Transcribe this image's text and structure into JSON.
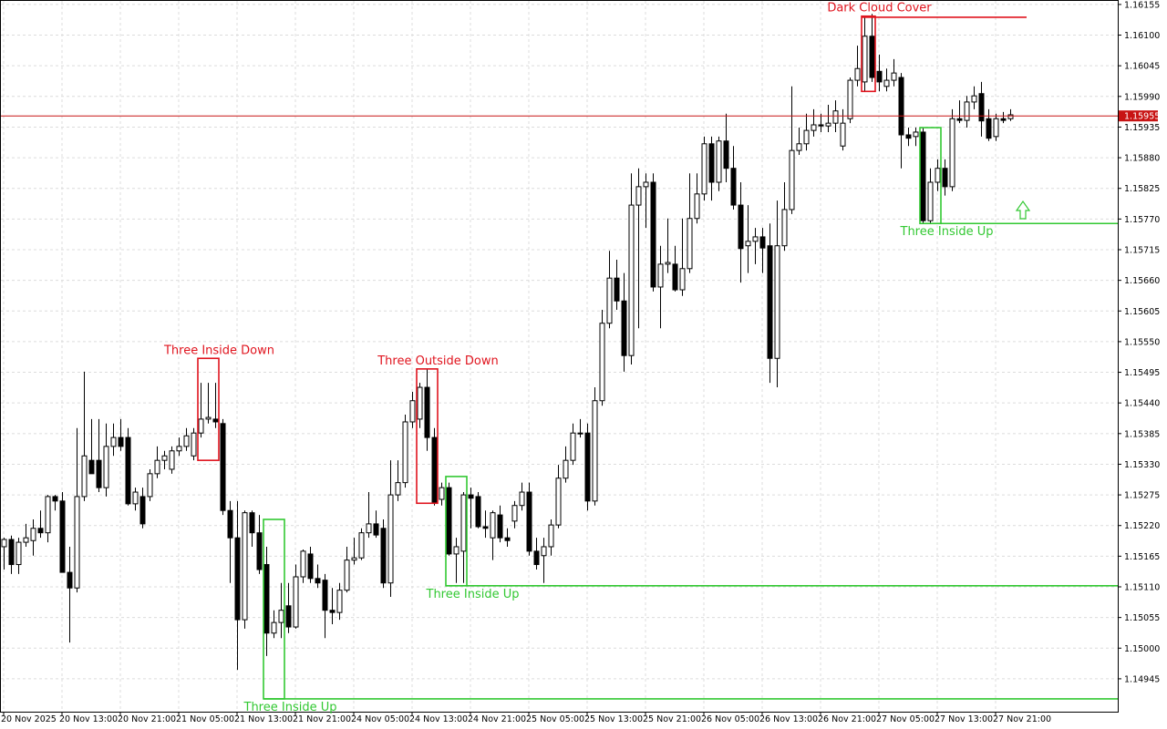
{
  "chart_data": {
    "type": "candlestick",
    "up_color": "#ffffff",
    "down_color": "#000000",
    "edge_color": "#000000",
    "grid": true,
    "xlim": [
      -0.5,
      152.75
    ],
    "ylim": [
      1.14886,
      1.16163
    ],
    "yticks": [
      1.16155,
      {
        "value": 1.161,
        "label": "1.16100"
      },
      1.16045,
      {
        "value": 1.1599,
        "label": "1.15990"
      },
      1.15935,
      {
        "value": 1.1588,
        "label": "1.15880"
      },
      1.15825,
      {
        "value": 1.1577,
        "label": "1.15770"
      },
      1.15715,
      {
        "value": 1.1566,
        "label": "1.15660"
      },
      1.15605,
      {
        "value": 1.1555,
        "label": "1.15550"
      },
      1.15495,
      {
        "value": 1.1544,
        "label": "1.15440"
      },
      1.15385,
      {
        "value": 1.1533,
        "label": "1.15330"
      },
      1.15275,
      {
        "value": 1.1522,
        "label": "1.15220"
      },
      1.15165,
      {
        "value": 1.1511,
        "label": "1.15110"
      },
      1.15055,
      {
        "value": 1.15,
        "label": "1.15000"
      },
      1.14945
    ],
    "xticks": [
      {
        "value": 0,
        "label": "20 Nov 2025"
      },
      {
        "value": 8,
        "label": "20 Nov 13:00"
      },
      {
        "value": 16,
        "label": "20 Nov 21:00"
      },
      {
        "value": 24,
        "label": "21 Nov 05:00"
      },
      {
        "value": 32,
        "label": "21 Nov 13:00"
      },
      {
        "value": 40,
        "label": "21 Nov 21:00"
      },
      {
        "value": 48,
        "label": "24 Nov 05:00"
      },
      {
        "value": 56,
        "label": "24 Nov 13:00"
      },
      {
        "value": 64,
        "label": "24 Nov 21:00"
      },
      {
        "value": 72,
        "label": "25 Nov 05:00"
      },
      {
        "value": 80,
        "label": "25 Nov 13:00"
      },
      {
        "value": 88,
        "label": "25 Nov 21:00"
      },
      {
        "value": 96,
        "label": "26 Nov 05:00"
      },
      {
        "value": 104,
        "label": "26 Nov 13:00"
      },
      {
        "value": 112,
        "label": "26 Nov 21:00"
      },
      {
        "value": 120,
        "label": "27 Nov 05:00"
      },
      {
        "value": 128,
        "label": "27 Nov 13:00"
      },
      {
        "value": 136,
        "label": "27 Nov 21:00"
      }
    ],
    "current_price": {
      "value": 1.15955,
      "color": "#c81414"
    },
    "open": [
      1.15182,
      1.15195,
      1.1515,
      1.1519,
      1.15193,
      1.15215,
      1.15207,
      1.15272,
      1.15264,
      1.15136,
      1.15108,
      1.15272,
      1.15337,
      1.15337,
      1.15288,
      1.15362,
      1.15378,
      1.15378,
      1.15259,
      1.15272,
      1.15272,
      1.15313,
      1.15337,
      1.15321,
      1.15354,
      1.15362,
      1.15345,
      1.15386,
      1.15411,
      1.15411,
      1.15403,
      1.15247,
      1.15198,
      1.15051,
      1.15243,
      1.15207,
      1.1515,
      1.15027,
      1.15046,
      1.15076,
      1.15038,
      1.15128,
      1.15169,
      1.15125,
      1.15122,
      1.15068,
      1.15064,
      1.15104,
      1.15158,
      1.15162,
      1.15207,
      1.15223,
      1.15215,
      1.15117,
      1.15275,
      1.15297,
      1.15406,
      1.15411,
      1.15468,
      1.15378,
      1.15267,
      1.15288,
      1.15169,
      1.15174,
      1.15275,
      1.15272,
      1.15218,
      1.15198,
      1.15239,
      1.15198,
      1.15228,
      1.15256,
      1.1528,
      1.15174,
      1.15166,
      1.15182,
      1.15221,
      1.15305,
      1.15337,
      1.15386,
      1.15386,
      1.15264,
      1.15444,
      1.15583,
      1.15664,
      1.15623,
      1.15525,
      1.15795,
      1.15828,
      1.15836,
      1.15648,
      1.15689,
      1.15689,
      1.15643,
      1.15681,
      1.15771,
      1.15815,
      1.15905,
      1.15836,
      1.1591,
      1.15861,
      1.15795,
      1.15722,
      1.1573,
      1.15738,
      1.15722,
      1.1552,
      1.15722,
      1.15787,
      1.15893,
      1.15905,
      1.15929,
      1.15939,
      1.15937,
      1.15942,
      1.15901,
      1.1595,
      1.16019,
      1.16016,
      1.16098,
      1.16035,
      1.16008,
      1.16019,
      1.16024,
      1.15921,
      1.15918,
      1.15926,
      1.15767,
      1.15836,
      1.15861,
      1.15828,
      1.1595,
      1.15947,
      1.1598,
      1.15995,
      1.1595,
      1.15918,
      1.1595,
      1.1595
    ],
    "high": [
      1.15198,
      1.15202,
      1.15198,
      1.15223,
      1.15231,
      1.15247,
      1.15275,
      1.15275,
      1.1528,
      1.15182,
      1.15395,
      1.15496,
      1.15411,
      1.15411,
      1.15403,
      1.15403,
      1.15411,
      1.15395,
      1.15288,
      1.15288,
      1.15321,
      1.15362,
      1.15354,
      1.15362,
      1.15378,
      1.15395,
      1.15395,
      1.15476,
      1.15476,
      1.15476,
      1.15411,
      1.15264,
      1.15264,
      1.15247,
      1.15247,
      1.15239,
      1.15182,
      1.15068,
      1.15117,
      1.15117,
      1.1515,
      1.15177,
      1.15182,
      1.1515,
      1.15133,
      1.15108,
      1.15117,
      1.15182,
      1.15198,
      1.15215,
      1.1528,
      1.15247,
      1.15231,
      1.15337,
      1.15337,
      1.15419,
      1.1546,
      1.15476,
      1.15501,
      1.15395,
      1.15297,
      1.15297,
      1.15198,
      1.1528,
      1.15288,
      1.1528,
      1.15247,
      1.15247,
      1.15256,
      1.15215,
      1.15264,
      1.15297,
      1.15297,
      1.15198,
      1.15198,
      1.15231,
      1.15329,
      1.15362,
      1.15403,
      1.15411,
      1.15403,
      1.15468,
      1.15607,
      1.15713,
      1.15697,
      1.15673,
      1.15852,
      1.15861,
      1.15852,
      1.15852,
      1.15722,
      1.15771,
      1.15722,
      1.15771,
      1.15852,
      1.15852,
      1.15918,
      1.15918,
      1.15918,
      1.15959,
      1.15901,
      1.15836,
      1.15795,
      1.15754,
      1.15754,
      1.15762,
      1.15803,
      1.15836,
      1.16008,
      1.15934,
      1.15959,
      1.15967,
      1.15959,
      1.15975,
      1.15983,
      1.15967,
      1.16024,
      1.16081,
      1.16134,
      1.16138,
      1.16065,
      1.1604,
      1.16057,
      1.16032,
      1.15934,
      1.15934,
      1.15934,
      1.15861,
      1.15877,
      1.15877,
      1.15967,
      1.15983,
      1.15991,
      1.16008,
      1.16016,
      1.15967,
      1.15959,
      1.15962,
      1.15967
    ],
    "low": [
      1.15141,
      1.15133,
      1.15133,
      1.15182,
      1.15166,
      1.15198,
      1.1519,
      1.15247,
      1.15136,
      1.1501,
      1.151,
      1.15264,
      1.15313,
      1.1528,
      1.15272,
      1.15345,
      1.15354,
      1.15256,
      1.15247,
      1.15215,
      1.15264,
      1.15305,
      1.15321,
      1.15313,
      1.15345,
      1.15354,
      1.15337,
      1.15378,
      1.15403,
      1.15395,
      1.15239,
      1.15117,
      1.14961,
      1.15035,
      1.15182,
      1.15133,
      1.14986,
      1.15018,
      1.15018,
      1.15027,
      1.15035,
      1.15117,
      1.15117,
      1.15108,
      1.15018,
      1.15043,
      1.15051,
      1.151,
      1.1515,
      1.15158,
      1.15198,
      1.15198,
      1.15108,
      1.15092,
      1.15264,
      1.15288,
      1.15395,
      1.15395,
      1.15354,
      1.15256,
      1.15256,
      1.15166,
      1.15117,
      1.15117,
      1.15215,
      1.15215,
      1.15198,
      1.15158,
      1.1519,
      1.15182,
      1.15215,
      1.15247,
      1.15166,
      1.15141,
      1.15117,
      1.15166,
      1.15215,
      1.15297,
      1.15329,
      1.15378,
      1.15247,
      1.15256,
      1.15435,
      1.15574,
      1.15607,
      1.15496,
      1.15509,
      1.15574,
      1.15754,
      1.1564,
      1.15574,
      1.15673,
      1.1564,
      1.15632,
      1.15673,
      1.15762,
      1.15803,
      1.15803,
      1.1582,
      1.15836,
      1.15787,
      1.15656,
      1.15673,
      1.15689,
      1.15673,
      1.15476,
      1.15468,
      1.15713,
      1.15779,
      1.15885,
      1.15893,
      1.15918,
      1.15926,
      1.15926,
      1.15926,
      1.15893,
      1.15942,
      1.16008,
      1.15999,
      1.16016,
      1.15999,
      1.15999,
      1.16008,
      1.15861,
      1.15901,
      1.15901,
      1.15762,
      1.15762,
      1.1582,
      1.15812,
      1.1582,
      1.15942,
      1.15934,
      1.15967,
      1.15918,
      1.1591,
      1.1591,
      1.15942,
      1.15946
    ],
    "close": [
      1.15195,
      1.1515,
      1.1519,
      1.15198,
      1.15215,
      1.15207,
      1.15272,
      1.15264,
      1.15136,
      1.15108,
      1.15272,
      1.15345,
      1.15313,
      1.15288,
      1.15362,
      1.15378,
      1.15362,
      1.15259,
      1.1528,
      1.15223,
      1.15313,
      1.15337,
      1.15345,
      1.15354,
      1.15362,
      1.15381,
      1.15386,
      1.15411,
      1.15414,
      1.15406,
      1.15247,
      1.15198,
      1.15051,
      1.15243,
      1.15207,
      1.15141,
      1.15027,
      1.15046,
      1.15068,
      1.15038,
      1.15128,
      1.15174,
      1.15125,
      1.15117,
      1.15068,
      1.15064,
      1.15104,
      1.15158,
      1.15162,
      1.15207,
      1.15223,
      1.15203,
      1.15117,
      1.15275,
      1.15297,
      1.15406,
      1.15444,
      1.15468,
      1.15378,
      1.1526,
      1.15288,
      1.15169,
      1.15182,
      1.15275,
      1.15269,
      1.15218,
      1.15215,
      1.15243,
      1.15198,
      1.15193,
      1.15256,
      1.1528,
      1.15174,
      1.1515,
      1.15182,
      1.15221,
      1.15305,
      1.15337,
      1.15386,
      1.15385,
      1.15264,
      1.15444,
      1.15583,
      1.15664,
      1.15623,
      1.15525,
      1.15795,
      1.15828,
      1.15836,
      1.15648,
      1.15689,
      1.15692,
      1.15643,
      1.15681,
      1.15771,
      1.15815,
      1.15905,
      1.15836,
      1.1591,
      1.15861,
      1.15795,
      1.15717,
      1.1573,
      1.15738,
      1.15718,
      1.1552,
      1.15722,
      1.15787,
      1.15893,
      1.15905,
      1.15929,
      1.15939,
      1.15937,
      1.15942,
      1.15964,
      1.15942,
      1.16019,
      1.1604,
      1.16098,
      1.16024,
      1.16016,
      1.16019,
      1.16032,
      1.15921,
      1.15915,
      1.15926,
      1.15767,
      1.15836,
      1.15861,
      1.15828,
      1.1595,
      1.15947,
      1.1598,
      1.15991,
      1.15946,
      1.15915,
      1.1595,
      1.15947,
      1.15957
    ],
    "patterns": [
      {
        "label": "Three Inside Down",
        "color": "#e0141e",
        "bars": [
          27,
          29
        ],
        "top": 1.1552,
        "bottom": 1.15337
      },
      {
        "label": "Three Inside Up",
        "color": "#32c832",
        "bars": [
          36,
          38
        ],
        "top": 1.15231,
        "bottom": 1.14909,
        "level": 1.14909
      },
      {
        "label": "Three Outside Down",
        "color": "#e0141e",
        "bars": [
          57,
          59
        ],
        "top": 1.15501,
        "bottom": 1.1526
      },
      {
        "label": "Three Inside Up",
        "color": "#32c832",
        "bars": [
          61,
          63
        ],
        "top": 1.15308,
        "bottom": 1.15112,
        "level": 1.15112
      },
      {
        "label": "Dark Cloud Cover",
        "color": "#e0141e",
        "bars": [
          118,
          119
        ],
        "top": 1.16134,
        "bottom": 1.15999,
        "level": 1.16132,
        "level_end": 140.25
      },
      {
        "label": "Three Inside Up",
        "color": "#32c832",
        "bars": [
          126,
          128
        ],
        "top": 1.15934,
        "bottom": 1.15762,
        "level": 1.15762
      }
    ]
  }
}
